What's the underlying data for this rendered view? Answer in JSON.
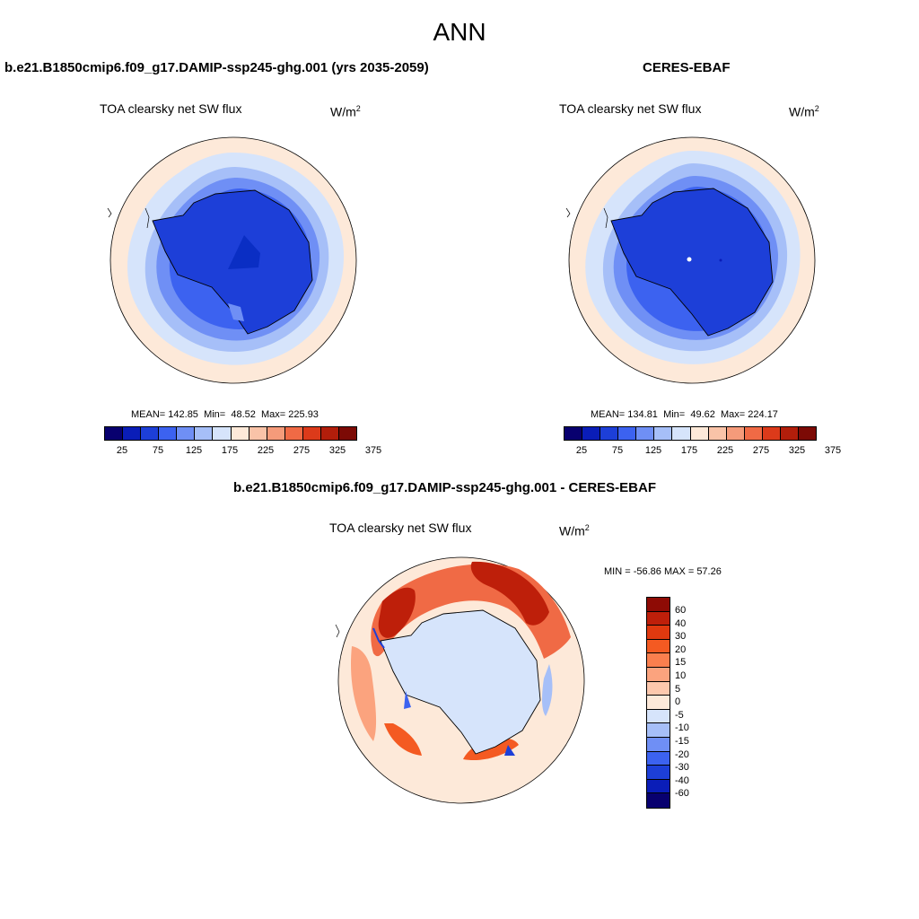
{
  "title": "ANN",
  "panels": {
    "left": {
      "header": "b.e21.B1850cmip6.f09_g17.DAMIP-ssp245-ghg.001 (yrs 2035-2059)",
      "variable": "TOA clearsky net SW flux",
      "units": "W/m",
      "units_exp": "2",
      "mean_label": "MEAN=",
      "mean": "142.85",
      "min_label": "Min=",
      "min": "48.52",
      "max_label": "Max=",
      "max": "225.93"
    },
    "right": {
      "header": "CERES-EBAF",
      "variable": "TOA clearsky net SW flux",
      "units": "W/m",
      "units_exp": "2",
      "mean_label": "MEAN=",
      "mean": "134.81",
      "min_label": "Min=",
      "min": "49.62",
      "max_label": "Max=",
      "max": "224.17"
    },
    "diff": {
      "header": "b.e21.B1850cmip6.f09_g17.DAMIP-ssp245-ghg.001 - CERES-EBAF",
      "variable": "TOA clearsky net SW flux",
      "units": "W/m",
      "units_exp": "2",
      "minmax_text": "MIN = -56.86 MAX =  57.26"
    }
  },
  "colorbar_main": {
    "tick_labels": [
      "25",
      "75",
      "125",
      "175",
      "225",
      "275",
      "325",
      "375"
    ],
    "colors": [
      "#08006f",
      "#0a1db8",
      "#1d3fd8",
      "#3c62f0",
      "#6f8ff5",
      "#a6bff8",
      "#d6e4fb",
      "#fde9d9",
      "#f9c3a8",
      "#f59b7a",
      "#f06a45",
      "#dc3a1a",
      "#b21e0b",
      "#7c0a05"
    ]
  },
  "colorbar_diff": {
    "labels": [
      "60",
      "40",
      "30",
      "20",
      "15",
      "10",
      "5",
      "0",
      "-5",
      "-10",
      "-15",
      "-20",
      "-30",
      "-40",
      "-60"
    ],
    "colors": [
      "#8e0b05",
      "#be1f0a",
      "#e0390f",
      "#f45a22",
      "#fa7f4e",
      "#fba37e",
      "#fdc8ad",
      "#fde9d9",
      "#d6e4fb",
      "#a6bff8",
      "#6f8ff5",
      "#3c62f0",
      "#1d3fd8",
      "#0a1db8",
      "#08006f"
    ]
  }
}
